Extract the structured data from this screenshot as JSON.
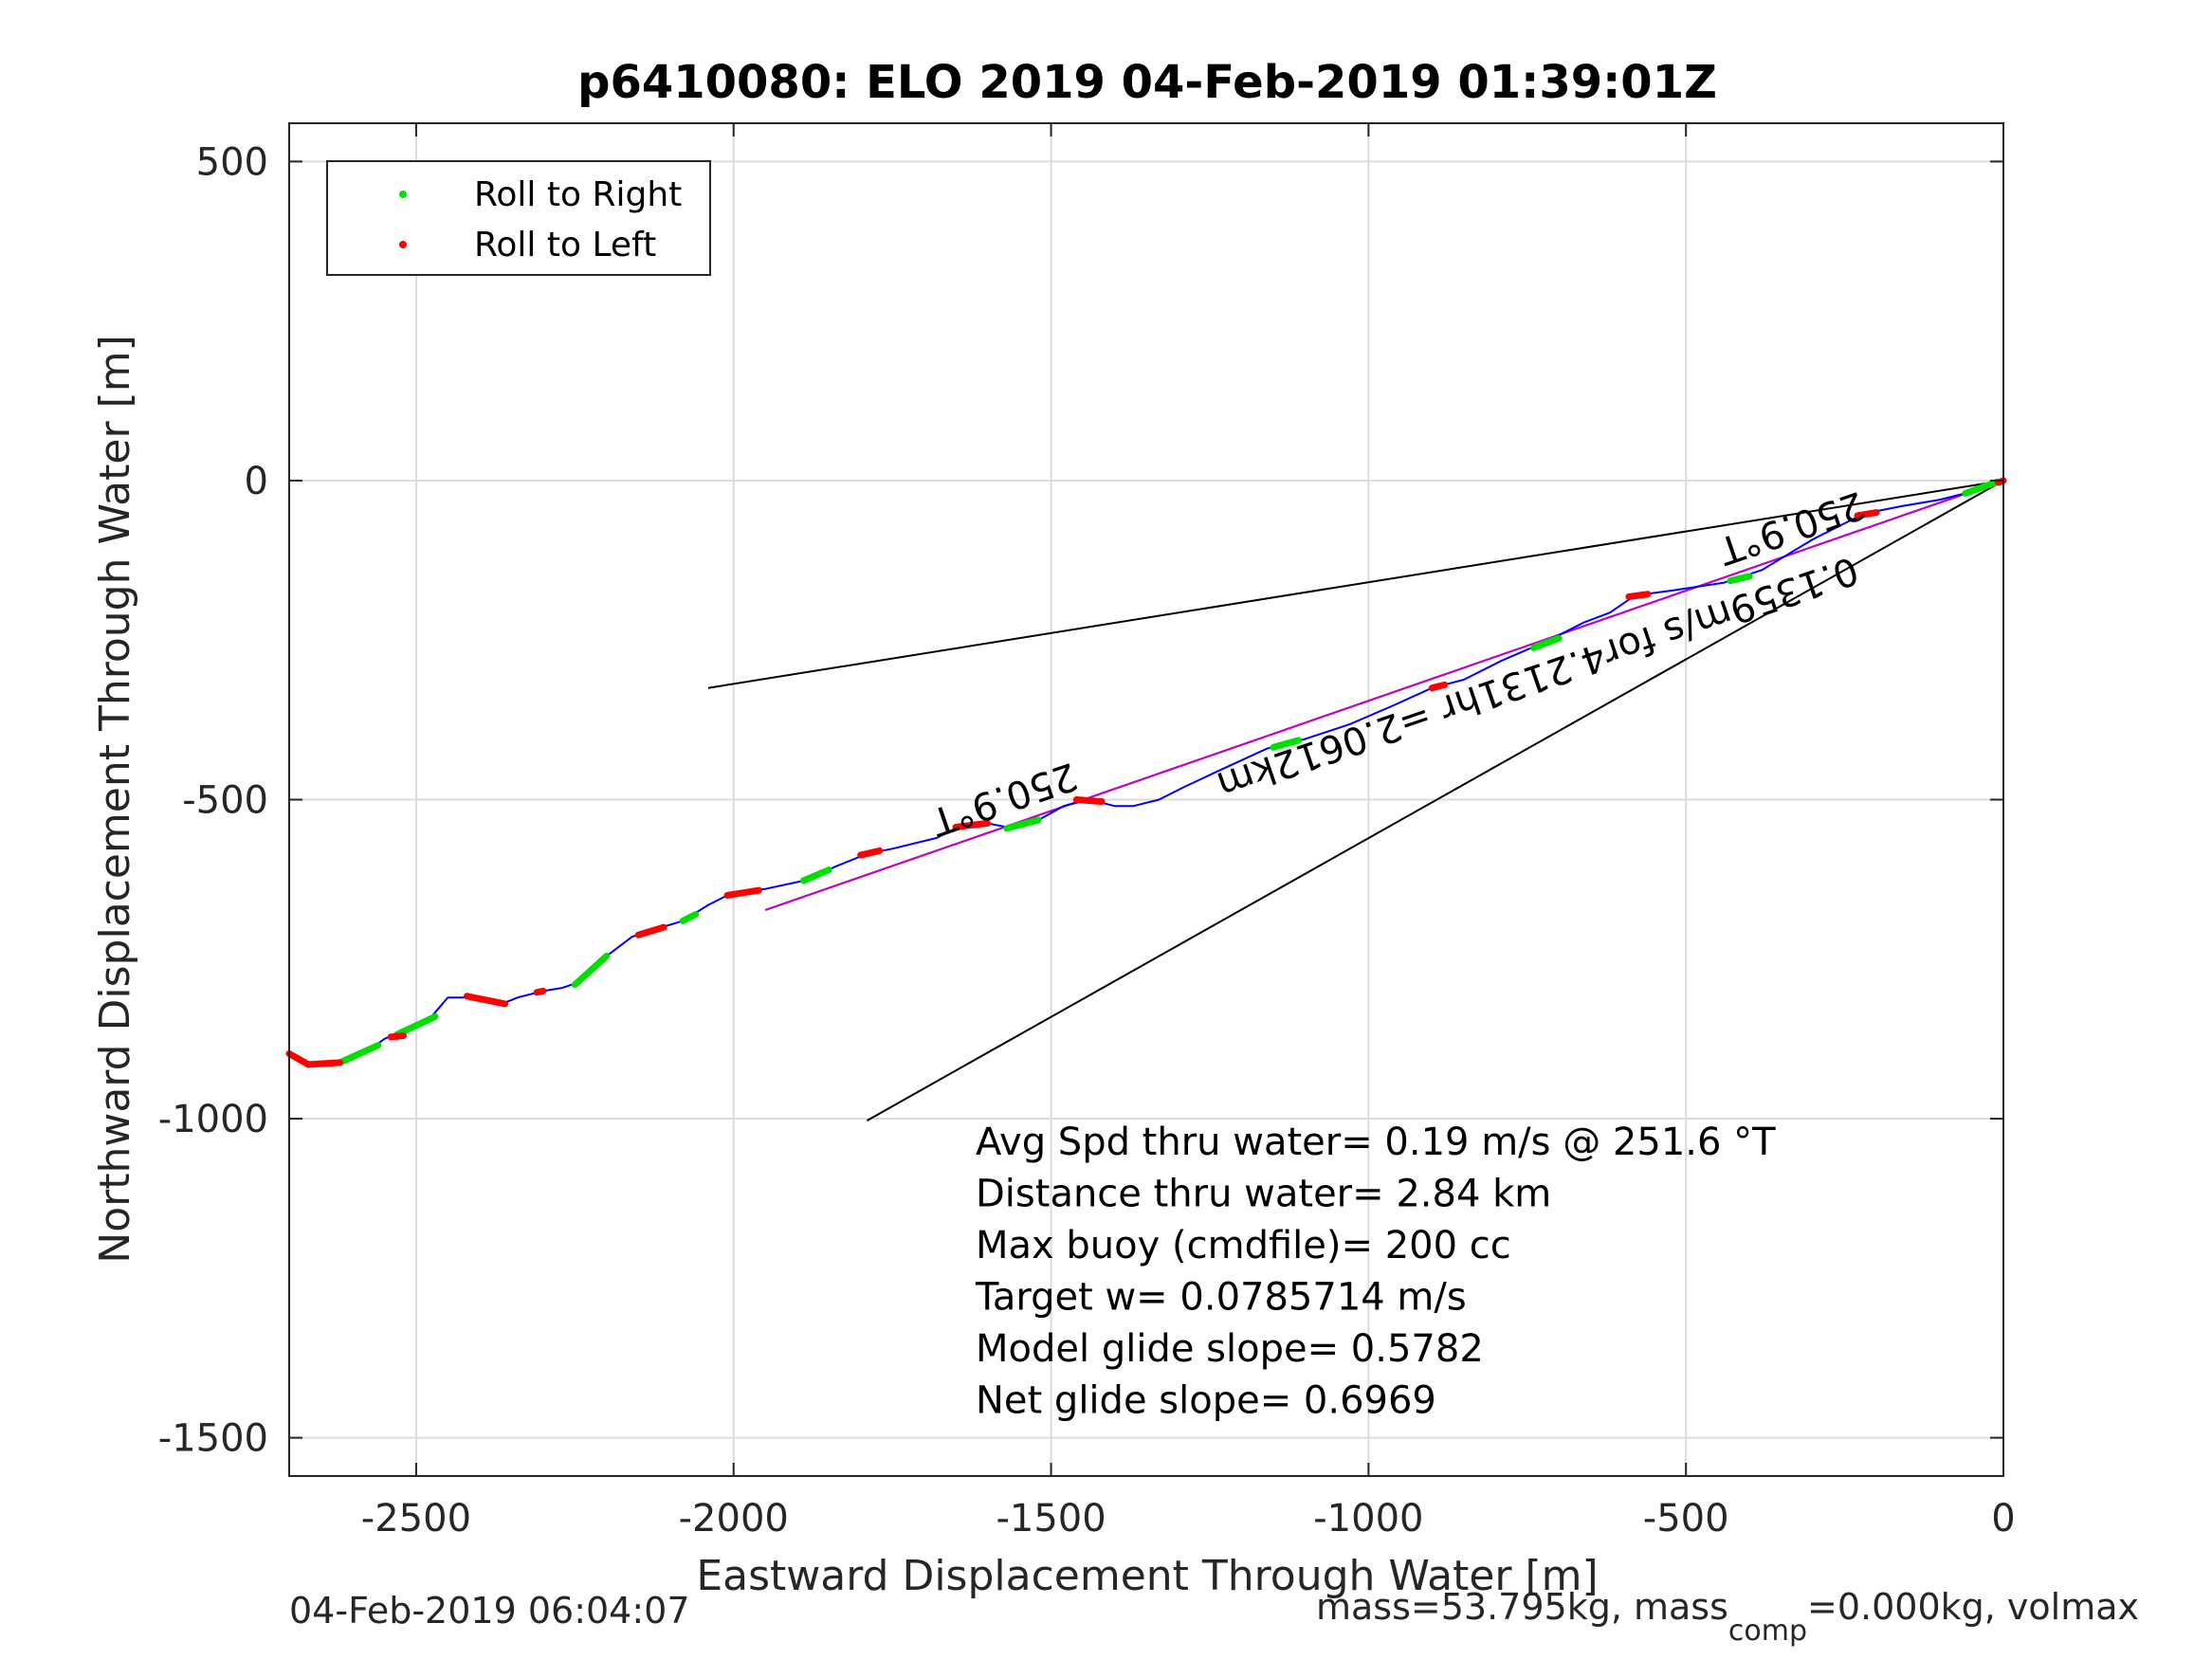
{
  "chart_data": {
    "type": "line",
    "title": "p6410080: ELO 2019 04-Feb-2019 01:39:01Z",
    "xlabel": "Eastward Displacement Through Water [m]",
    "ylabel": "Northward Displacement Through Water [m]",
    "xlim": [
      -2700,
      0
    ],
    "ylim": [
      -1560,
      560
    ],
    "xticks": [
      -2500,
      -2000,
      -1500,
      -1000,
      -500,
      0
    ],
    "yticks": [
      500,
      0,
      -500,
      -1000,
      -1500
    ],
    "grid": true,
    "legend": {
      "placement": "top-left",
      "entries": [
        {
          "label": "Roll to Right",
          "color": "#00e000"
        },
        {
          "label": "Roll to Left",
          "color": "#ff0000"
        }
      ]
    },
    "track": {
      "color": "#0000ff",
      "points": [
        [
          0,
          0
        ],
        [
          -40,
          -15
        ],
        [
          -100,
          -30
        ],
        [
          -160,
          -40
        ],
        [
          -220,
          -52
        ],
        [
          -300,
          -92
        ],
        [
          -380,
          -140
        ],
        [
          -440,
          -160
        ],
        [
          -520,
          -172
        ],
        [
          -580,
          -180
        ],
        [
          -620,
          -207
        ],
        [
          -660,
          -222
        ],
        [
          -720,
          -252
        ],
        [
          -790,
          -282
        ],
        [
          -850,
          -312
        ],
        [
          -900,
          -325
        ],
        [
          -960,
          -352
        ],
        [
          -1030,
          -382
        ],
        [
          -1100,
          -405
        ],
        [
          -1160,
          -420
        ],
        [
          -1230,
          -452
        ],
        [
          -1290,
          -480
        ],
        [
          -1330,
          -500
        ],
        [
          -1370,
          -510
        ],
        [
          -1400,
          -510
        ],
        [
          -1440,
          -500
        ],
        [
          -1480,
          -510
        ],
        [
          -1520,
          -532
        ],
        [
          -1560,
          -545
        ],
        [
          -1610,
          -535
        ],
        [
          -1640,
          -540
        ],
        [
          -1680,
          -560
        ],
        [
          -1750,
          -577
        ],
        [
          -1790,
          -585
        ],
        [
          -1840,
          -605
        ],
        [
          -1880,
          -625
        ],
        [
          -1950,
          -640
        ],
        [
          -2000,
          -645
        ],
        [
          -2040,
          -665
        ],
        [
          -2080,
          -690
        ],
        [
          -2120,
          -702
        ],
        [
          -2160,
          -715
        ],
        [
          -2200,
          -745
        ],
        [
          -2240,
          -785
        ],
        [
          -2270,
          -795
        ],
        [
          -2300,
          -800
        ],
        [
          -2340,
          -810
        ],
        [
          -2370,
          -822
        ],
        [
          -2410,
          -810
        ],
        [
          -2450,
          -810
        ],
        [
          -2480,
          -845
        ],
        [
          -2520,
          -862
        ],
        [
          -2550,
          -875
        ],
        [
          -2580,
          -897
        ],
        [
          -2620,
          -912
        ],
        [
          -2660,
          -918
        ],
        [
          -2690,
          -905
        ],
        [
          -2700,
          -900
        ]
      ],
      "right_rolls": [
        [
          [
            -10,
            -2
          ],
          [
            -60,
            -20
          ]
        ],
        [
          [
            -400,
            -150
          ],
          [
            -430,
            -157
          ]
        ],
        [
          [
            -700,
            -247
          ],
          [
            -740,
            -262
          ]
        ],
        [
          [
            -1110,
            -407
          ],
          [
            -1150,
            -418
          ]
        ],
        [
          [
            -1520,
            -532
          ],
          [
            -1570,
            -545
          ]
        ],
        [
          [
            -1850,
            -610
          ],
          [
            -1890,
            -627
          ]
        ],
        [
          [
            -2060,
            -680
          ],
          [
            -2080,
            -690
          ]
        ],
        [
          [
            -2200,
            -745
          ],
          [
            -2250,
            -790
          ]
        ],
        [
          [
            -2470,
            -840
          ],
          [
            -2530,
            -868
          ]
        ],
        [
          [
            -2560,
            -885
          ],
          [
            -2620,
            -912
          ]
        ]
      ],
      "left_rolls": [
        [
          [
            0,
            0
          ],
          [
            -8,
            -3
          ]
        ],
        [
          [
            -200,
            -50
          ],
          [
            -230,
            -55
          ]
        ],
        [
          [
            -560,
            -178
          ],
          [
            -590,
            -182
          ]
        ],
        [
          [
            -880,
            -320
          ],
          [
            -900,
            -325
          ]
        ],
        [
          [
            -1420,
            -503
          ],
          [
            -1460,
            -500
          ]
        ],
        [
          [
            -1600,
            -537
          ],
          [
            -1650,
            -543
          ]
        ],
        [
          [
            -1770,
            -580
          ],
          [
            -1800,
            -587
          ]
        ],
        [
          [
            -1960,
            -642
          ],
          [
            -2010,
            -650
          ]
        ],
        [
          [
            -2110,
            -700
          ],
          [
            -2150,
            -712
          ]
        ],
        [
          [
            -2300,
            -800
          ],
          [
            -2310,
            -802
          ]
        ],
        [
          [
            -2360,
            -820
          ],
          [
            -2420,
            -808
          ]
        ],
        [
          [
            -2520,
            -870
          ],
          [
            -2540,
            -872
          ]
        ],
        [
          [
            -2620,
            -912
          ],
          [
            -2670,
            -915
          ]
        ],
        [
          [
            -2670,
            -915
          ],
          [
            -2700,
            -898
          ]
        ]
      ]
    },
    "reference_lines": [
      {
        "color": "#000000",
        "points": [
          [
            0,
            0
          ],
          [
            -2040,
            -325
          ]
        ]
      },
      {
        "color": "#000000",
        "points": [
          [
            0,
            0
          ],
          [
            -1790,
            -1003
          ]
        ]
      },
      {
        "color": "#000000",
        "points": [
          [
            0,
            0
          ],
          [
            -1950,
            -673
          ]
        ]
      },
      {
        "color": "#cc00cc",
        "points": [
          [
            0,
            0
          ],
          [
            -1950,
            -673
          ]
        ]
      }
    ],
    "annotations": [
      {
        "text": "250.9°T",
        "x": -1580,
        "y": -480,
        "angle": -18.9
      },
      {
        "text": "0.1359m/s for4.2131hr =2.0612km",
        "x": -740,
        "y": -290,
        "angle": -18.9
      },
      {
        "text": "250.9°T",
        "x": -340,
        "y": -55,
        "angle": -18.9
      }
    ],
    "stats": [
      "Avg Spd thru water=  0.19 m/s @ 251.6 °T",
      "Distance thru water=  2.84 km",
      "Max buoy (cmdfile)= 200 cc",
      "Target w= 0.0785714 m/s",
      "Model glide slope= 0.5782",
      "Net glide slope= 0.6969"
    ]
  },
  "footer": {
    "timestamp": "04-Feb-2019 06:04:07",
    "mass_text_a": "mass=53.795kg, mass",
    "mass_sub": "comp",
    "mass_text_b": "=0.000kg, volmax"
  }
}
